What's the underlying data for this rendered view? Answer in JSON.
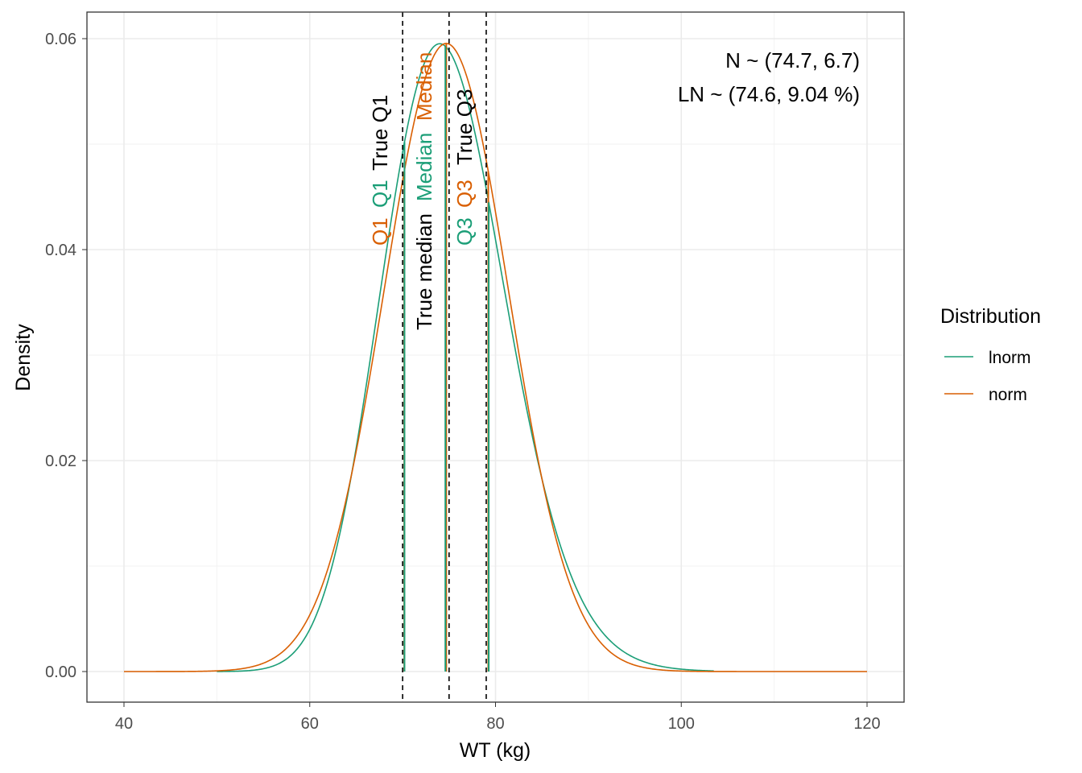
{
  "chart_data": {
    "type": "line",
    "title": "",
    "xlabel": "WT (kg)",
    "ylabel": "Density",
    "xlim": [
      36,
      124
    ],
    "ylim": [
      -0.0029,
      0.0625
    ],
    "x_ticks": [
      40,
      60,
      80,
      100,
      120
    ],
    "x_tick_labels": [
      "40",
      "60",
      "80",
      "100",
      "120"
    ],
    "y_ticks": [
      0,
      0.02,
      0.04,
      0.06
    ],
    "y_tick_labels": [
      "0.00",
      "0.02",
      "0.04",
      "0.06"
    ],
    "grid": true,
    "legend": {
      "title": "Distribution",
      "position": "right"
    },
    "series": [
      {
        "name": "lnorm",
        "color": "#1B9E77",
        "dist": "lognormal",
        "median": 74.6,
        "cv_percent": 9.04,
        "x_range": [
          50,
          103.5
        ],
        "quartiles": [
          70.2,
          74.6,
          79.27
        ]
      },
      {
        "name": "norm",
        "color": "#D95F02",
        "dist": "normal",
        "mean": 74.7,
        "sd": 6.7,
        "x_range": [
          40,
          120
        ],
        "quartiles": [
          70.18,
          74.7,
          79.22
        ]
      }
    ],
    "true_quartiles": [
      70.0,
      75.0,
      79.0
    ],
    "annotations": [
      {
        "text": "N ~ (74.7, 6.7)",
        "color": "#000000"
      },
      {
        "text": "LN ~ (74.6, 9.04 %)",
        "color": "#000000"
      }
    ],
    "line_labels": [
      {
        "text": "Q1",
        "color": "#D95F02"
      },
      {
        "text": "Q1",
        "color": "#1B9E77"
      },
      {
        "text": "True Q1",
        "color": "#000000"
      },
      {
        "text": "Median",
        "color": "#D95F02"
      },
      {
        "text": "Median",
        "color": "#1B9E77"
      },
      {
        "text": "True median",
        "color": "#000000"
      },
      {
        "text": "True Q3",
        "color": "#000000"
      },
      {
        "text": "Q3",
        "color": "#D95F02"
      },
      {
        "text": "Q3",
        "color": "#1B9E77"
      }
    ]
  }
}
